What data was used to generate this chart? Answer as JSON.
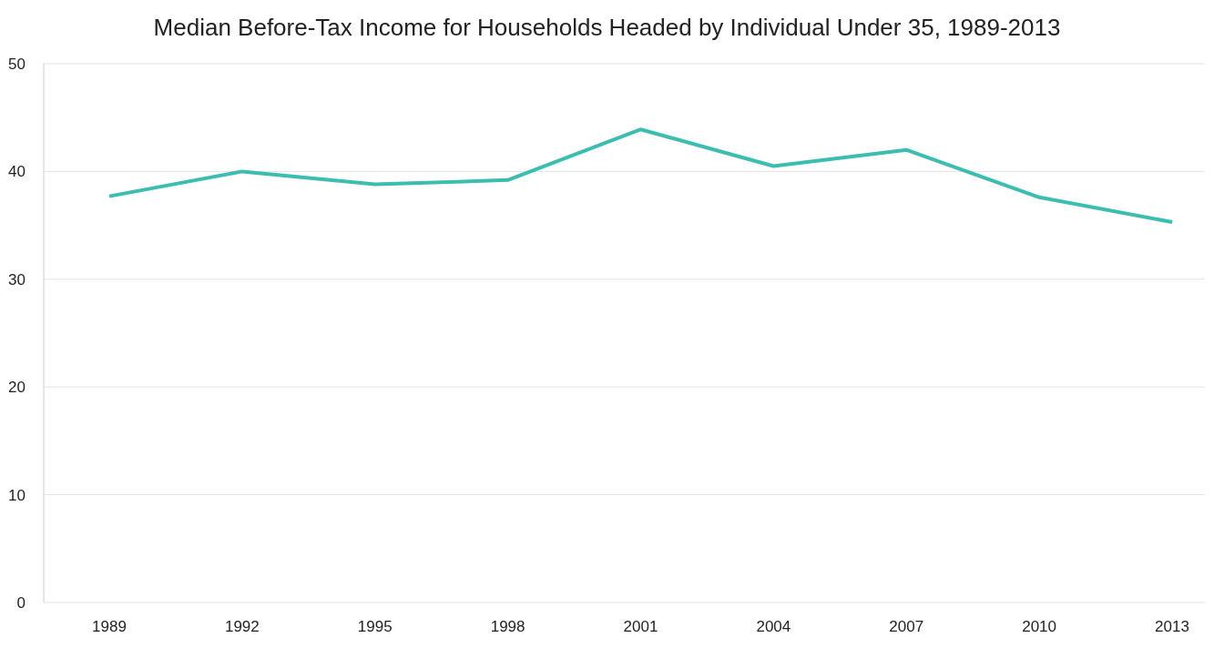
{
  "chart_data": {
    "type": "line",
    "title": "Median Before-Tax Income for Households Headed by Individual Under 35, 1989-2013",
    "categories": [
      "1989",
      "1992",
      "1995",
      "1998",
      "2001",
      "2004",
      "2007",
      "2010",
      "2013"
    ],
    "series": [
      {
        "color": "#3bbdb0",
        "values": [
          37.7,
          40.0,
          38.8,
          39.2,
          43.9,
          40.5,
          42.0,
          37.6,
          35.3
        ]
      }
    ],
    "ylim": [
      0,
      50
    ],
    "yticks": [
      0,
      10,
      20,
      30,
      40,
      50
    ],
    "grid": "y",
    "marker": "none",
    "line_style": "solid"
  }
}
